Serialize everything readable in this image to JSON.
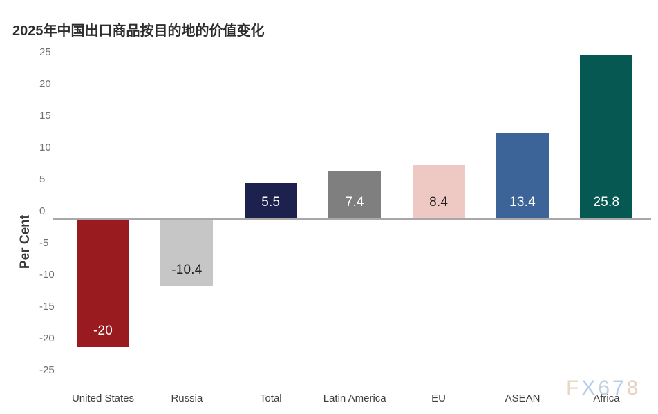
{
  "chart_data": {
    "type": "bar",
    "title": "2025年中国出口商品按目的地的价值变化",
    "ylabel": "Per Cent",
    "categories": [
      "United States",
      "Russia",
      "Total",
      "Latin America",
      "EU",
      "ASEAN",
      "Africa"
    ],
    "values": [
      -20,
      -10.4,
      5.5,
      7.4,
      8.4,
      13.4,
      25.8
    ],
    "value_labels": [
      "-20",
      "-10.4",
      "5.5",
      "7.4",
      "8.4",
      "13.4",
      "25.8"
    ],
    "bar_colors": [
      "#9a1b1f",
      "#c6c6c6",
      "#1d214d",
      "#7f7f7f",
      "#eec8c3",
      "#3d6499",
      "#065852"
    ],
    "value_label_colors": [
      "#ffffff",
      "#1f1f1f",
      "#ffffff",
      "#ffffff",
      "#1f1f1f",
      "#ffffff",
      "#ffffff"
    ],
    "ylim": [
      -25,
      25
    ],
    "yticks": [
      25,
      20,
      15,
      10,
      5,
      0,
      -5,
      -10,
      -15,
      -20,
      -25
    ],
    "grid": false,
    "legend": "none",
    "zero_line_color": "#a8a8a8"
  },
  "watermark": {
    "text": "FX678",
    "letters": [
      {
        "char": "F",
        "color": "#e9d8c1"
      },
      {
        "char": "X",
        "color": "#b6cee9"
      },
      {
        "char": "6",
        "color": "#c3d2de"
      },
      {
        "char": "7",
        "color": "#b6cee9"
      },
      {
        "char": "8",
        "color": "#e5d2c3"
      }
    ]
  }
}
